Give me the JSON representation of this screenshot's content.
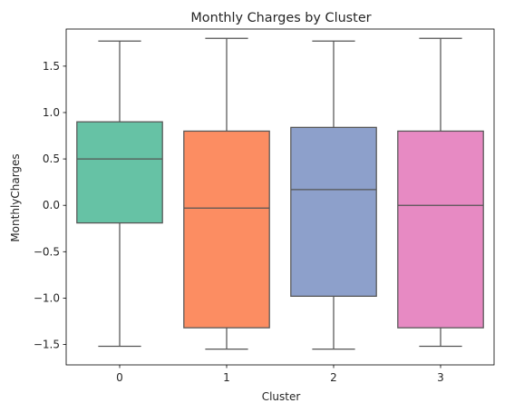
{
  "chart_data": {
    "type": "box",
    "title": "Monthly Charges by Cluster",
    "xlabel": "Cluster",
    "ylabel": "MonthlyCharges",
    "categories": [
      "0",
      "1",
      "2",
      "3"
    ],
    "ylim": [
      -1.72,
      1.9
    ],
    "yticks": [
      -1.5,
      -1.0,
      -0.5,
      0.0,
      0.5,
      1.0,
      1.5
    ],
    "ytick_labels": [
      "−1.5",
      "−1.0",
      "−0.5",
      "0.0",
      "0.5",
      "1.0",
      "1.5"
    ],
    "grid": false,
    "boxes": [
      {
        "category": "0",
        "whisker_low": -1.52,
        "q1": -0.19,
        "median": 0.5,
        "q3": 0.9,
        "whisker_high": 1.77,
        "color": "#66c2a5"
      },
      {
        "category": "1",
        "whisker_low": -1.55,
        "q1": -1.32,
        "median": -0.03,
        "q3": 0.8,
        "whisker_high": 1.8,
        "color": "#fc8d62"
      },
      {
        "category": "2",
        "whisker_low": -1.55,
        "q1": -0.98,
        "median": 0.17,
        "q3": 0.84,
        "whisker_high": 1.77,
        "color": "#8da0cb"
      },
      {
        "category": "3",
        "whisker_low": -1.52,
        "q1": -1.32,
        "median": 0.0,
        "q3": 0.8,
        "whisker_high": 1.8,
        "color": "#e78ac3"
      }
    ]
  }
}
